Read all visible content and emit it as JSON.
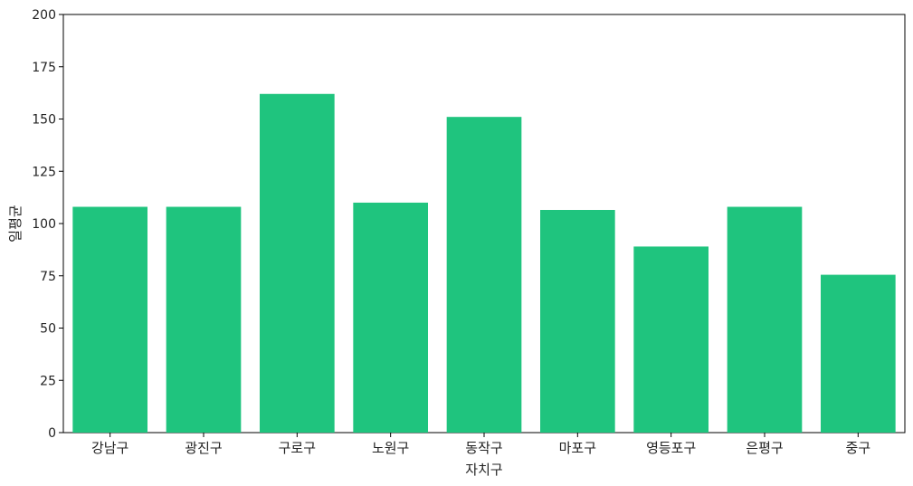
{
  "chart_data": {
    "type": "bar",
    "xlabel": "자치구",
    "ylabel": "일평균",
    "ylim": [
      0,
      200
    ],
    "yticks": [
      "0",
      "25",
      "50",
      "75",
      "100",
      "125",
      "150",
      "175",
      "200"
    ],
    "categories": [
      "강남구",
      "광진구",
      "구로구",
      "노원구",
      "동작구",
      "마포구",
      "영등포구",
      "은평구",
      "중구"
    ],
    "values": [
      108,
      108,
      162,
      110,
      151,
      106.5,
      89,
      108,
      75.5
    ],
    "bar_color": "#1fc47e",
    "grid": false
  }
}
